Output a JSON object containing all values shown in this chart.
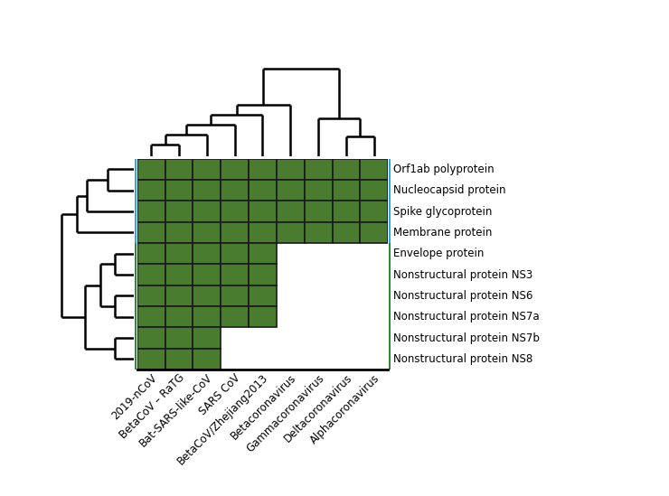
{
  "proteins": [
    "Orf1ab polyprotein",
    "Nucleocapsid protein",
    "Spike glycoprotein",
    "Membrane protein",
    "Envelope protein",
    "Nonstructural protein NS3",
    "Nonstructural protein NS6",
    "Nonstructural protein NS7a",
    "Nonstructural protein NS7b",
    "Nonstructural protein NS8"
  ],
  "viruses": [
    "2019-nCoV",
    "BetaCoV – RaTG",
    "Bat-SARS-like-CoV",
    "SARS CoV",
    "BetaCoV/Zhejiang2013",
    "Betacoronavirus",
    "Gammacoronavirus",
    "Deltacoronavirus",
    "Alphacoronavirus"
  ],
  "matrix": [
    [
      1,
      1,
      1,
      1,
      1,
      1,
      1,
      1,
      1
    ],
    [
      1,
      1,
      1,
      1,
      1,
      1,
      1,
      1,
      1
    ],
    [
      1,
      1,
      1,
      1,
      1,
      1,
      1,
      1,
      1
    ],
    [
      1,
      1,
      1,
      1,
      1,
      1,
      1,
      1,
      1
    ],
    [
      1,
      1,
      1,
      1,
      1,
      0,
      0,
      0,
      0
    ],
    [
      1,
      1,
      1,
      1,
      1,
      0,
      0,
      0,
      0
    ],
    [
      1,
      1,
      1,
      1,
      1,
      0,
      0,
      0,
      0
    ],
    [
      1,
      1,
      1,
      1,
      1,
      0,
      0,
      0,
      0
    ],
    [
      1,
      1,
      1,
      0,
      0,
      0,
      0,
      0,
      0
    ],
    [
      1,
      1,
      1,
      0,
      0,
      0,
      0,
      0,
      0
    ]
  ],
  "cell_color": "#4a7c2f",
  "cell_edge_color": "#1a1a1a",
  "background_color": "#ffffff",
  "cyan_color": "#29abe2",
  "dark_green_color": "#2e8b2e",
  "row_group": [
    0,
    0,
    0,
    0,
    1,
    1,
    1,
    1,
    1,
    1
  ],
  "lw": 1.8
}
